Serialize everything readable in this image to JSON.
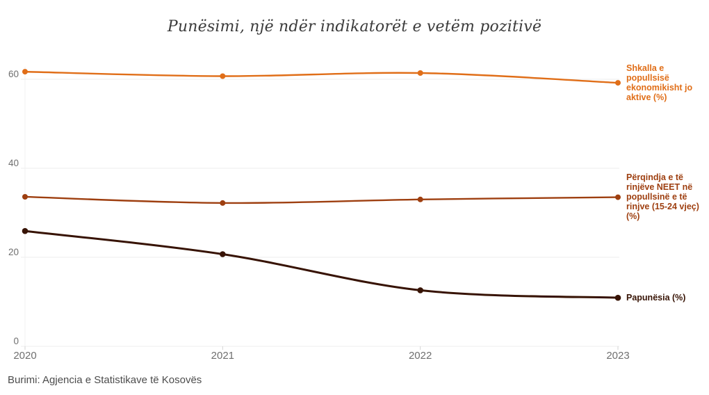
{
  "title": "Punësimi, një ndër indikatorët e vetëm pozitivë",
  "source_note": "Burimi: Agjencia e Statistikave të Kosovës",
  "chart_data": {
    "type": "line",
    "title": "Punësimi, një ndër indikatorët e vetëm pozitivë",
    "x": [
      "2020",
      "2021",
      "2022",
      "2023"
    ],
    "y_ticks": [
      0,
      20,
      40,
      60
    ],
    "ylim": [
      0,
      65
    ],
    "grid": "horizontal",
    "legend_position": "right-edge-inline-labels",
    "markers": "filled-circles-at-each-point",
    "axis_label_color": "#6f6f6f",
    "grid_color": "#ececec",
    "series": [
      {
        "name": "Shkalla e popullsisë ekonomikisht jo aktive (%)",
        "values": [
          61.7,
          60.7,
          61.4,
          59.2
        ],
        "color": "#e06e18",
        "stroke_width": 2.4
      },
      {
        "name": "Përqindja e të rinjëve NEET në popullsinë e të rinjve (15-24 vjeç) (%)",
        "values": [
          33.6,
          32.2,
          33.0,
          33.5
        ],
        "color": "#9e3f10",
        "stroke_width": 2.4
      },
      {
        "name": "Papunësia (%)",
        "values": [
          25.9,
          20.7,
          12.6,
          10.9
        ],
        "color": "#371304",
        "stroke_width": 3
      }
    ]
  }
}
